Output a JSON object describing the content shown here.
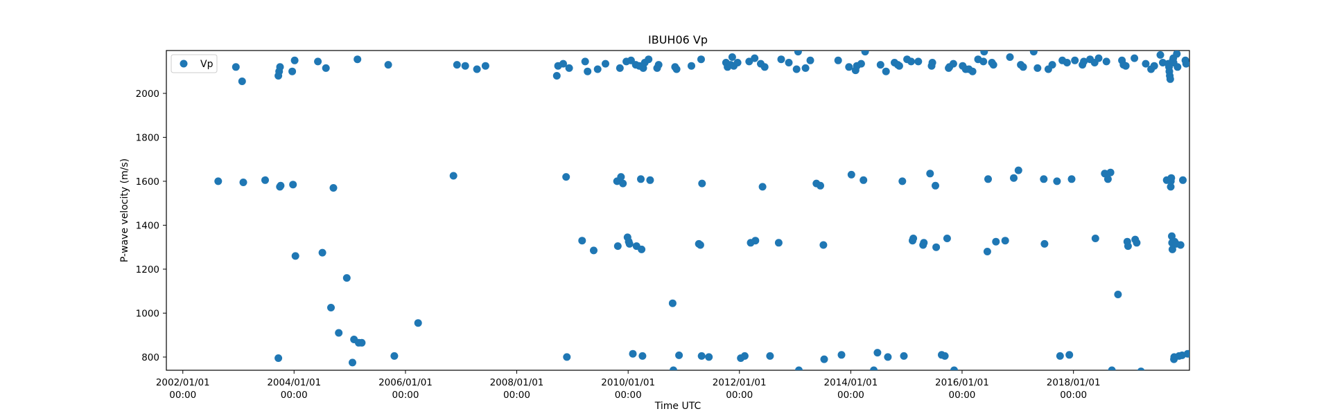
{
  "colors": {
    "series": "#1f77b4",
    "axis": "#000000",
    "background": "#ffffff"
  },
  "chart_data": {
    "type": "scatter",
    "title": "IBUH06 Vp",
    "xlabel": "Time UTC",
    "ylabel": "P-wave velocity (m/s)",
    "x_axis_type": "date",
    "xlim": [
      "2001-09-15",
      "2020-02-01"
    ],
    "ylim": [
      740,
      2195
    ],
    "grid": false,
    "legend_position": "top-left",
    "x_ticks": [
      {
        "value": "2002-01-01",
        "line1": "2002/01/01",
        "line2": "00:00"
      },
      {
        "value": "2004-01-01",
        "line1": "2004/01/01",
        "line2": "00:00"
      },
      {
        "value": "2006-01-01",
        "line1": "2006/01/01",
        "line2": "00:00"
      },
      {
        "value": "2008-01-01",
        "line1": "2008/01/01",
        "line2": "00:00"
      },
      {
        "value": "2010-01-01",
        "line1": "2010/01/01",
        "line2": "00:00"
      },
      {
        "value": "2012-01-01",
        "line1": "2012/01/01",
        "line2": "00:00"
      },
      {
        "value": "2014-01-01",
        "line1": "2014/01/01",
        "line2": "00:00"
      },
      {
        "value": "2016-01-01",
        "line1": "2016/01/01",
        "line2": "00:00"
      },
      {
        "value": "2018-01-01",
        "line1": "2018/01/01",
        "line2": "00:00"
      }
    ],
    "y_ticks": [
      {
        "value": 800,
        "label": "800"
      },
      {
        "value": 1000,
        "label": "1000"
      },
      {
        "value": 1200,
        "label": "1200"
      },
      {
        "value": 1400,
        "label": "1400"
      },
      {
        "value": 1600,
        "label": "1600"
      },
      {
        "value": 1800,
        "label": "1800"
      },
      {
        "value": 2000,
        "label": "2000"
      }
    ],
    "series": [
      {
        "name": "Vp",
        "points": [
          [
            "2002-08-21",
            1600
          ],
          [
            "2002-12-15",
            2120
          ],
          [
            "2003-01-25",
            2055
          ],
          [
            "2003-02-02",
            1595
          ],
          [
            "2003-06-25",
            1605
          ],
          [
            "2003-09-20",
            2080
          ],
          [
            "2003-09-25",
            2100
          ],
          [
            "2003-10-01",
            2120
          ],
          [
            "2003-09-30",
            1575
          ],
          [
            "2003-10-05",
            1580
          ],
          [
            "2003-09-20",
            795
          ],
          [
            "2003-12-20",
            2100
          ],
          [
            "2004-01-05",
            2150
          ],
          [
            "2003-12-25",
            1585
          ],
          [
            "2004-01-10",
            1260
          ],
          [
            "2004-06-05",
            2145
          ],
          [
            "2004-07-28",
            2115
          ],
          [
            "2004-07-05",
            1275
          ],
          [
            "2004-09-15",
            1570
          ],
          [
            "2004-08-30",
            1025
          ],
          [
            "2004-10-20",
            910
          ],
          [
            "2004-12-12",
            1160
          ],
          [
            "2005-01-28",
            880
          ],
          [
            "2005-02-20",
            2155
          ],
          [
            "2005-02-28",
            865
          ],
          [
            "2005-03-20",
            865
          ],
          [
            "2005-01-18",
            775
          ],
          [
            "2005-09-10",
            2130
          ],
          [
            "2005-10-20",
            805
          ],
          [
            "2006-03-25",
            955
          ],
          [
            "2006-11-12",
            1625
          ],
          [
            "2006-12-05",
            2130
          ],
          [
            "2007-01-28",
            2125
          ],
          [
            "2007-04-15",
            2110
          ],
          [
            "2007-06-10",
            2125
          ],
          [
            "2008-09-20",
            2080
          ],
          [
            "2008-09-28",
            2125
          ],
          [
            "2008-11-01",
            2135
          ],
          [
            "2008-11-20",
            1620
          ],
          [
            "2008-11-25",
            800
          ],
          [
            "2008-12-10",
            2115
          ],
          [
            "2009-03-05",
            1330
          ],
          [
            "2009-03-25",
            2145
          ],
          [
            "2009-04-10",
            2100
          ],
          [
            "2009-05-20",
            1285
          ],
          [
            "2009-06-15",
            2110
          ],
          [
            "2009-08-05",
            2135
          ],
          [
            "2009-10-20",
            1600
          ],
          [
            "2009-10-25",
            1305
          ],
          [
            "2009-11-08",
            2115
          ],
          [
            "2009-11-15",
            1620
          ],
          [
            "2009-11-28",
            1590
          ],
          [
            "2009-12-20",
            2145
          ],
          [
            "2010-02-20",
            2130
          ],
          [
            "2010-02-25",
            1305
          ],
          [
            "2010-03-25",
            1610
          ],
          [
            "2010-03-30",
            1290
          ],
          [
            "2010-04-05",
            805
          ],
          [
            "2010-04-10",
            2115
          ],
          [
            "2010-04-20",
            2140
          ],
          [
            "2010-05-15",
            2155
          ],
          [
            "2010-05-25",
            1605
          ],
          [
            "2009-12-28",
            1345
          ],
          [
            "2010-01-05",
            1325
          ],
          [
            "2010-01-10",
            1315
          ],
          [
            "2010-01-20",
            2150
          ],
          [
            "2010-02-01",
            815
          ],
          [
            "2010-03-15",
            2125
          ],
          [
            "2010-07-10",
            2115
          ],
          [
            "2010-07-20",
            2130
          ],
          [
            "2010-10-20",
            1045
          ],
          [
            "2010-11-05",
            2120
          ],
          [
            "2010-11-15",
            2110
          ],
          [
            "2010-12-01",
            808
          ],
          [
            "2010-10-25",
            740
          ],
          [
            "2011-02-20",
            2125
          ],
          [
            "2011-04-10",
            1315
          ],
          [
            "2011-04-20",
            1310
          ],
          [
            "2011-04-25",
            2155
          ],
          [
            "2011-05-01",
            1590
          ],
          [
            "2011-04-28",
            805
          ],
          [
            "2011-06-15",
            800
          ],
          [
            "2011-10-05",
            2140
          ],
          [
            "2011-10-15",
            2120
          ],
          [
            "2011-11-05",
            2130
          ],
          [
            "2011-11-15",
            2165
          ],
          [
            "2011-11-25",
            2125
          ],
          [
            "2011-12-20",
            2140
          ],
          [
            "2012-01-10",
            795
          ],
          [
            "2012-02-05",
            805
          ],
          [
            "2012-03-05",
            2145
          ],
          [
            "2012-03-15",
            1320
          ],
          [
            "2012-04-10",
            2160
          ],
          [
            "2012-04-15",
            1330
          ],
          [
            "2012-05-20",
            2135
          ],
          [
            "2012-06-01",
            1575
          ],
          [
            "2012-06-15",
            2120
          ],
          [
            "2012-07-20",
            805
          ],
          [
            "2012-09-15",
            1320
          ],
          [
            "2012-10-01",
            2155
          ],
          [
            "2012-11-20",
            2140
          ],
          [
            "2013-01-10",
            2110
          ],
          [
            "2013-01-20",
            2190
          ],
          [
            "2013-01-25",
            740
          ],
          [
            "2013-03-10",
            2115
          ],
          [
            "2013-04-10",
            2150
          ],
          [
            "2013-05-20",
            1590
          ],
          [
            "2013-06-15",
            1580
          ],
          [
            "2013-07-05",
            1310
          ],
          [
            "2013-07-10",
            790
          ],
          [
            "2013-10-10",
            2150
          ],
          [
            "2013-11-01",
            810
          ],
          [
            "2013-12-20",
            2120
          ],
          [
            "2014-01-05",
            1630
          ],
          [
            "2014-02-01",
            2105
          ],
          [
            "2014-02-10",
            2125
          ],
          [
            "2014-03-10",
            2135
          ],
          [
            "2014-03-25",
            1605
          ],
          [
            "2014-04-05",
            2190
          ],
          [
            "2014-06-01",
            740
          ],
          [
            "2014-06-25",
            820
          ],
          [
            "2014-07-15",
            2130
          ],
          [
            "2014-08-20",
            2100
          ],
          [
            "2014-09-01",
            800
          ],
          [
            "2014-10-15",
            2140
          ],
          [
            "2014-11-05",
            2130
          ],
          [
            "2014-11-15",
            2125
          ],
          [
            "2014-12-05",
            1600
          ],
          [
            "2014-12-15",
            805
          ],
          [
            "2015-01-05",
            2155
          ],
          [
            "2015-02-01",
            2145
          ],
          [
            "2015-02-10",
            1330
          ],
          [
            "2015-02-15",
            1340
          ],
          [
            "2015-03-20",
            2145
          ],
          [
            "2015-04-20",
            1310
          ],
          [
            "2015-04-25",
            1320
          ],
          [
            "2015-06-05",
            1635
          ],
          [
            "2015-06-15",
            2125
          ],
          [
            "2015-06-20",
            2140
          ],
          [
            "2015-07-10",
            1580
          ],
          [
            "2015-07-15",
            1300
          ],
          [
            "2015-08-20",
            810
          ],
          [
            "2015-09-10",
            805
          ],
          [
            "2015-09-25",
            1340
          ],
          [
            "2015-10-05",
            2115
          ],
          [
            "2015-10-10",
            2120
          ],
          [
            "2015-11-05",
            2135
          ],
          [
            "2015-11-10",
            740
          ],
          [
            "2016-01-05",
            2125
          ],
          [
            "2016-01-25",
            2110
          ],
          [
            "2016-02-15",
            2110
          ],
          [
            "2016-03-10",
            2100
          ],
          [
            "2016-04-15",
            2155
          ],
          [
            "2016-05-20",
            2145
          ],
          [
            "2016-05-25",
            2190
          ],
          [
            "2016-06-15",
            1280
          ],
          [
            "2016-06-20",
            1610
          ],
          [
            "2016-07-15",
            2140
          ],
          [
            "2016-07-25",
            2130
          ],
          [
            "2016-08-10",
            1325
          ],
          [
            "2016-10-10",
            1330
          ],
          [
            "2016-11-10",
            2165
          ],
          [
            "2016-12-05",
            1615
          ],
          [
            "2017-01-05",
            1650
          ],
          [
            "2017-01-20",
            2130
          ],
          [
            "2017-02-05",
            2120
          ],
          [
            "2017-04-15",
            2190
          ],
          [
            "2017-05-10",
            2115
          ],
          [
            "2017-06-20",
            1610
          ],
          [
            "2017-06-25",
            1315
          ],
          [
            "2017-07-20",
            2110
          ],
          [
            "2017-08-15",
            2130
          ],
          [
            "2017-09-15",
            1600
          ],
          [
            "2017-10-05",
            805
          ],
          [
            "2017-10-20",
            2150
          ],
          [
            "2017-11-20",
            2140
          ],
          [
            "2017-12-05",
            810
          ],
          [
            "2017-12-20",
            1610
          ],
          [
            "2018-01-10",
            2150
          ],
          [
            "2018-03-01",
            2130
          ],
          [
            "2018-03-10",
            2145
          ],
          [
            "2018-04-20",
            2155
          ],
          [
            "2018-05-20",
            2140
          ],
          [
            "2018-05-25",
            1340
          ],
          [
            "2018-06-15",
            2160
          ],
          [
            "2018-07-25",
            1635
          ],
          [
            "2018-08-05",
            2145
          ],
          [
            "2018-08-15",
            1610
          ],
          [
            "2018-09-01",
            1640
          ],
          [
            "2018-09-10",
            740
          ],
          [
            "2018-10-20",
            1085
          ],
          [
            "2018-11-15",
            2150
          ],
          [
            "2018-11-25",
            2130
          ],
          [
            "2018-12-10",
            2125
          ],
          [
            "2018-12-20",
            1325
          ],
          [
            "2018-12-25",
            1305
          ],
          [
            "2019-02-05",
            2160
          ],
          [
            "2019-02-10",
            1335
          ],
          [
            "2019-02-20",
            1320
          ],
          [
            "2019-03-20",
            735
          ],
          [
            "2019-04-20",
            2135
          ],
          [
            "2019-05-25",
            2110
          ],
          [
            "2019-06-15",
            2125
          ],
          [
            "2019-07-25",
            2175
          ],
          [
            "2019-08-10",
            2140
          ],
          [
            "2019-09-05",
            1605
          ],
          [
            "2019-09-15",
            2135
          ],
          [
            "2019-09-20",
            2120
          ],
          [
            "2019-09-22",
            2100
          ],
          [
            "2019-09-25",
            2080
          ],
          [
            "2019-09-28",
            2065
          ],
          [
            "2019-10-01",
            1575
          ],
          [
            "2019-10-02",
            1600
          ],
          [
            "2019-10-05",
            1615
          ],
          [
            "2019-10-08",
            1350
          ],
          [
            "2019-10-10",
            1320
          ],
          [
            "2019-10-12",
            1290
          ],
          [
            "2019-10-15",
            2150
          ],
          [
            "2019-10-18",
            2160
          ],
          [
            "2019-10-20",
            2140
          ],
          [
            "2019-10-22",
            790
          ],
          [
            "2019-10-24",
            800
          ],
          [
            "2019-10-26",
            1325
          ],
          [
            "2019-11-05",
            1315
          ],
          [
            "2019-11-10",
            2180
          ],
          [
            "2019-11-15",
            2120
          ],
          [
            "2019-11-25",
            805
          ],
          [
            "2019-12-05",
            1310
          ],
          [
            "2019-12-15",
            808
          ],
          [
            "2019-12-20",
            1605
          ],
          [
            "2020-01-05",
            2150
          ],
          [
            "2020-01-10",
            2135
          ],
          [
            "2020-01-20",
            815
          ]
        ]
      }
    ]
  }
}
